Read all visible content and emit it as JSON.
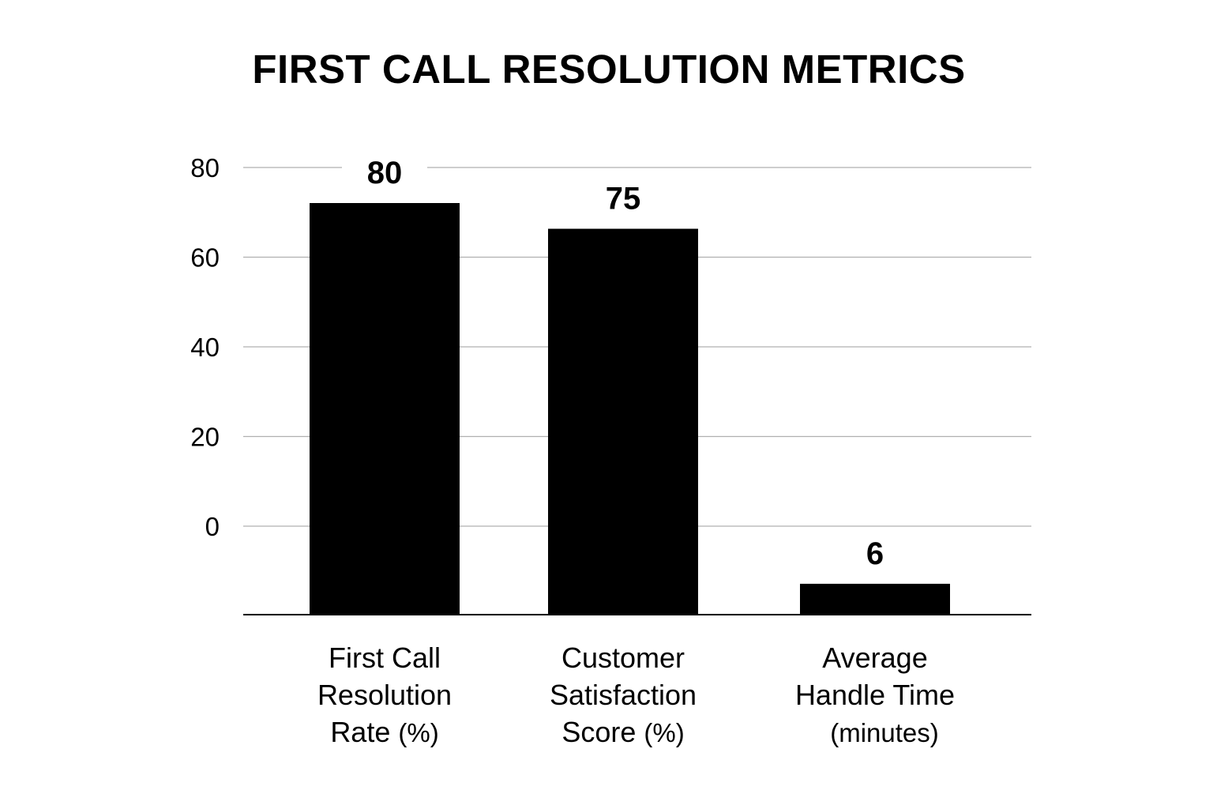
{
  "chart_data": {
    "type": "bar",
    "title": "FIRST CALL RESOLUTION METRICS",
    "xlabel": "",
    "ylabel": "",
    "yticks": [
      0,
      20,
      40,
      60,
      80
    ],
    "ylim": [
      0,
      80
    ],
    "grid": true,
    "categories": [
      {
        "lines": [
          "First Call",
          "Resolution",
          "Rate"
        ],
        "unit": "(%)"
      },
      {
        "lines": [
          "Customer",
          "Satisfaction",
          "Score"
        ],
        "unit": "(%)"
      },
      {
        "lines": [
          "Average",
          "Handle Time"
        ],
        "unit": "(minutes)"
      }
    ],
    "values": [
      80,
      75,
      6
    ],
    "data_labels": [
      "80",
      "75",
      "6"
    ],
    "colors": {
      "bar": "#000000",
      "grid": "#b0b0b0",
      "axis": "#000000"
    }
  }
}
